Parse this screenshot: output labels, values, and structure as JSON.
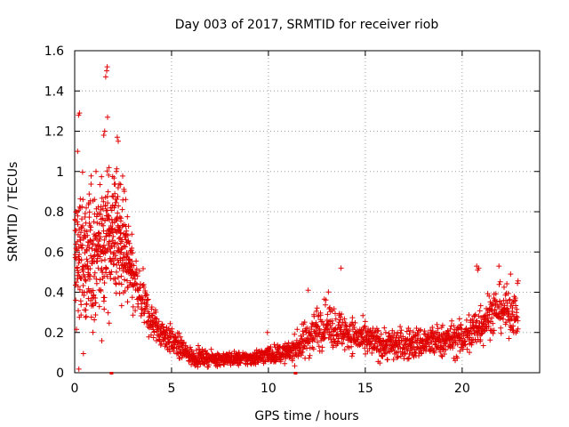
{
  "chart_data": {
    "type": "scatter",
    "title": "Day 003 of 2017, SRMTID for receiver riob",
    "xlabel": "GPS time / hours",
    "ylabel": "SRMTID / TECUs",
    "xlim": [
      0,
      24
    ],
    "ylim": [
      0,
      1.6
    ],
    "xticks": [
      0,
      5,
      10,
      15,
      20
    ],
    "xtick_labels": [
      "0",
      "5",
      "10",
      "15",
      "20"
    ],
    "yticks": [
      0,
      0.2,
      0.4,
      0.6,
      0.8,
      1.0,
      1.2,
      1.4,
      1.6
    ],
    "ytick_labels": [
      "0",
      "0.2",
      "0.4",
      "0.6",
      "0.8",
      "1",
      "1.2",
      "1.4",
      "1.6"
    ],
    "grid": true,
    "marker": "+",
    "color": "#e00000",
    "gap_markers_x": [
      1.9,
      11.4
    ],
    "envelope": {
      "description": "approximate mean and spread of the scattered SRMTID values vs time",
      "x": [
        0.0,
        0.5,
        1.0,
        1.5,
        2.0,
        2.5,
        3.0,
        3.5,
        4.0,
        4.5,
        5.0,
        5.5,
        6.0,
        7.0,
        8.0,
        9.0,
        10.0,
        11.0,
        11.8,
        12.5,
        13.0,
        13.5,
        14.0,
        15.0,
        16.0,
        17.0,
        18.0,
        19.0,
        20.0,
        20.5,
        21.0,
        21.5,
        22.0,
        22.5,
        22.9
      ],
      "mean": [
        0.55,
        0.55,
        0.58,
        0.65,
        0.7,
        0.65,
        0.45,
        0.35,
        0.25,
        0.2,
        0.16,
        0.12,
        0.08,
        0.07,
        0.07,
        0.07,
        0.09,
        0.1,
        0.15,
        0.22,
        0.25,
        0.22,
        0.2,
        0.16,
        0.14,
        0.14,
        0.15,
        0.16,
        0.17,
        0.2,
        0.25,
        0.3,
        0.32,
        0.3,
        0.3
      ],
      "spread": [
        0.38,
        0.35,
        0.3,
        0.3,
        0.3,
        0.25,
        0.15,
        0.12,
        0.08,
        0.07,
        0.06,
        0.05,
        0.04,
        0.03,
        0.03,
        0.03,
        0.04,
        0.04,
        0.08,
        0.1,
        0.1,
        0.09,
        0.08,
        0.07,
        0.07,
        0.07,
        0.07,
        0.07,
        0.08,
        0.1,
        0.1,
        0.1,
        0.1,
        0.1,
        0.1
      ]
    },
    "extreme_points": [
      {
        "x": 1.65,
        "y": 1.5
      },
      {
        "x": 1.6,
        "y": 1.47
      },
      {
        "x": 1.68,
        "y": 1.52
      },
      {
        "x": 0.2,
        "y": 1.28
      },
      {
        "x": 0.25,
        "y": 1.29
      },
      {
        "x": 1.7,
        "y": 1.27
      },
      {
        "x": 1.55,
        "y": 1.2
      },
      {
        "x": 2.2,
        "y": 1.17
      },
      {
        "x": 2.25,
        "y": 1.15
      },
      {
        "x": 0.15,
        "y": 1.1
      },
      {
        "x": 1.5,
        "y": 1.18
      },
      {
        "x": 2.15,
        "y": 1.0
      },
      {
        "x": 20.75,
        "y": 0.53
      },
      {
        "x": 20.85,
        "y": 0.52
      },
      {
        "x": 20.8,
        "y": 0.51
      },
      {
        "x": 13.75,
        "y": 0.52
      },
      {
        "x": 21.9,
        "y": 0.53
      },
      {
        "x": 22.5,
        "y": 0.49
      },
      {
        "x": 12.05,
        "y": 0.41
      },
      {
        "x": 9.95,
        "y": 0.2
      }
    ]
  }
}
